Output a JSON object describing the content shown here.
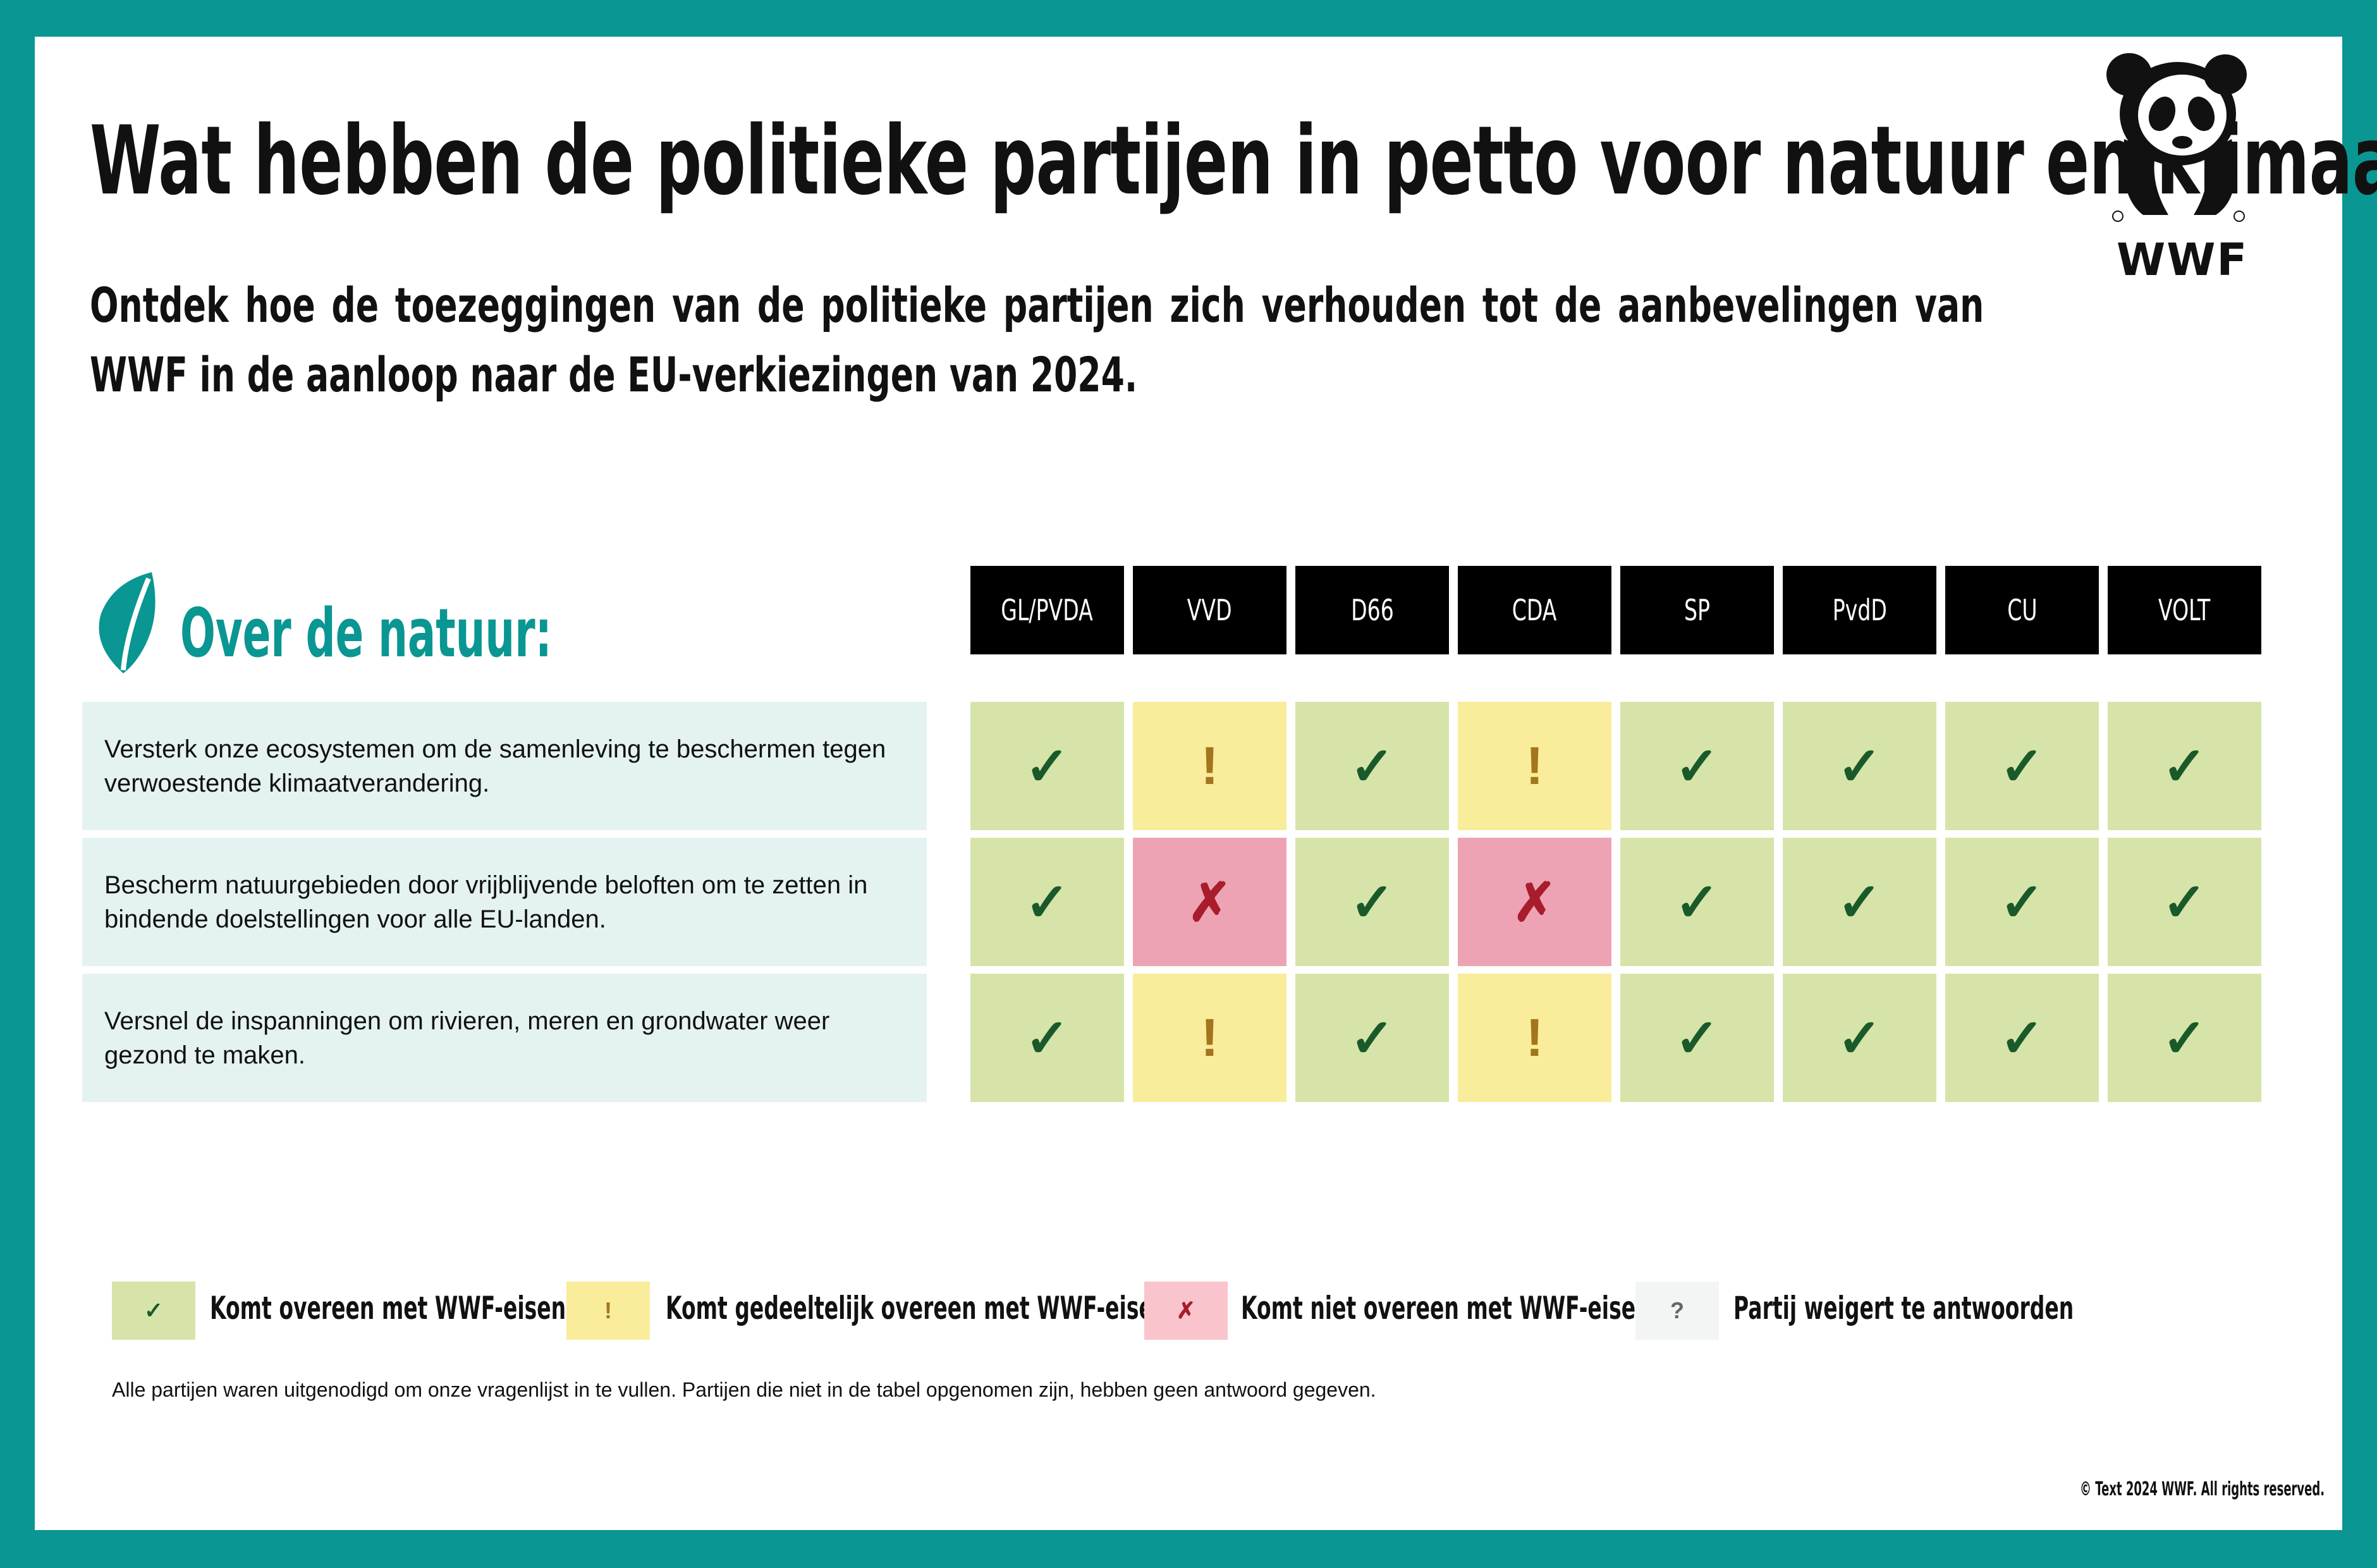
{
  "title": "Wat hebben de politieke partijen in petto voor natuur en klimaat?",
  "subtitle": "Ontdek hoe de toezeggingen van de politieke partijen zich verhouden tot de aanbevelingen van WWF in de aanloop naar de EU-verkiezingen van 2024.",
  "logo": {
    "text": "WWF",
    "icon": "panda-logo-icon"
  },
  "section": {
    "title": "Over de natuur:",
    "icon": "leaf-icon"
  },
  "parties": [
    "GL/PVDA",
    "VVD",
    "D66",
    "CDA",
    "SP",
    "PvdD",
    "CU",
    "VOLT"
  ],
  "symbols": {
    "check": "✓",
    "partial": "!",
    "no": "✗",
    "unknown": "?"
  },
  "rows": [
    {
      "label": "Versterk onze ecosystemen om de samenleving te beschermen tegen verwoestende klimaatverandering.",
      "ratings": [
        "check",
        "partial",
        "check",
        "partial",
        "check",
        "check",
        "check",
        "check"
      ]
    },
    {
      "label": "Bescherm natuurgebieden door vrijblijvende beloften om te zetten in bindende doelstellingen voor alle EU-landen.",
      "ratings": [
        "check",
        "no",
        "check",
        "no",
        "check",
        "check",
        "check",
        "check"
      ]
    },
    {
      "label": "Versnel de inspanningen om rivieren, meren en grondwater weer gezond te maken.",
      "ratings": [
        "check",
        "partial",
        "check",
        "partial",
        "check",
        "check",
        "check",
        "check"
      ]
    }
  ],
  "legend": [
    {
      "symbol": "✓",
      "label": "Komt overeen met WWF-eisen",
      "color": "#d6e4a9",
      "symbol_color": "#1a5a2a"
    },
    {
      "symbol": "!",
      "label": "Komt gedeeltelijk overeen met WWF-eisen",
      "color": "#f9ec9a",
      "symbol_color": "#a3751c"
    },
    {
      "symbol": "✗",
      "label": "Komt niet overeen met WWF-eisen",
      "color": "#f9c4cc",
      "symbol_color": "#a81c2c"
    },
    {
      "symbol": "?",
      "label": "Partij weigert te antwoorden",
      "color": "#f3f4f4",
      "symbol_color": "#666666"
    }
  ],
  "note": "Alle partijen waren uitgenodigd om onze vragenlijst in te vullen. Partijen die niet in de tabel opgenomen zijn, hebben geen antwoord gegeven.",
  "copyright": "© Text 2024 WWF. All rights reserved.",
  "colors": {
    "frame": "#0a9692",
    "accent": "#0a9692",
    "row_bg": "#e5f2f2"
  }
}
